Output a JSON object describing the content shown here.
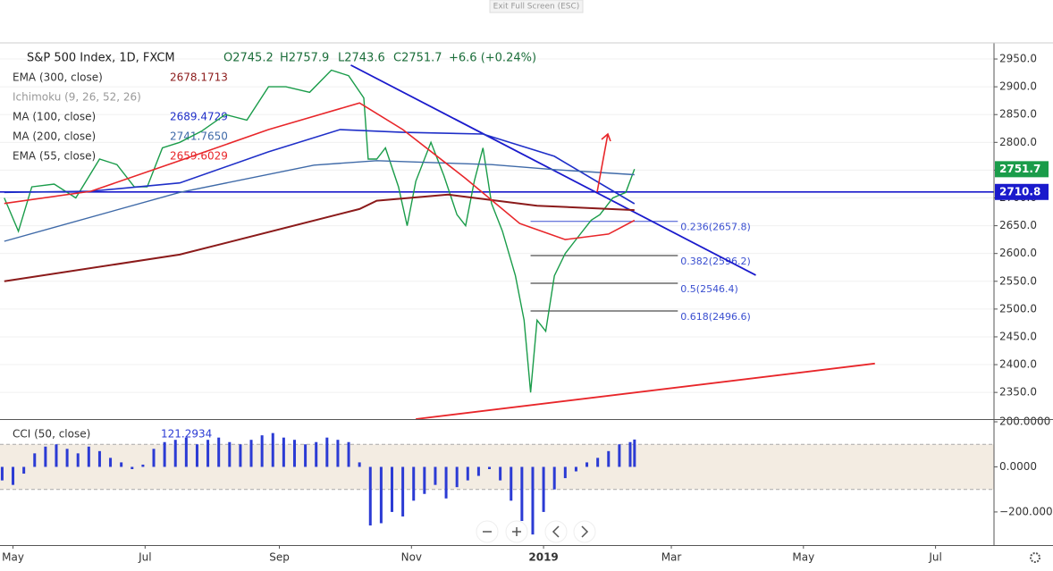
{
  "ui": {
    "exit_button": "Exit Full Screen (ESC)"
  },
  "chart_data": [
    {
      "type": "line",
      "title": "S&P 500 Index, 1D, FXCM",
      "ohlc": [
        "O2745.2",
        "H2757.9",
        "L2743.6",
        "C2751.7",
        "+6.6 (+0.24%)"
      ],
      "xlim": [
        -6,
        453
      ],
      "ylim": [
        2302,
        2979
      ],
      "yticks": [
        {
          "value": 2350,
          "label": "2350.0"
        },
        {
          "value": 2400,
          "label": "2400.0"
        },
        {
          "value": 2450,
          "label": "2450.0"
        },
        {
          "value": 2500,
          "label": "2500.0"
        },
        {
          "value": 2550,
          "label": "2550.0"
        },
        {
          "value": 2600,
          "label": "2600.0"
        },
        {
          "value": 2650,
          "label": "2650.0"
        },
        {
          "value": 2700,
          "label": "2700.0"
        },
        {
          "value": 2750,
          "label": "2750.0"
        },
        {
          "value": 2800,
          "label": "2800.0"
        },
        {
          "value": 2850,
          "label": "2850.0"
        },
        {
          "value": 2900,
          "label": "2900.0"
        },
        {
          "value": 2950,
          "label": "2950.0"
        }
      ],
      "grid": true,
      "series": [
        {
          "color": "#1a9c4a",
          "width": 1.4,
          "x": [
            -4,
            2.5,
            8.7,
            19,
            29,
            40,
            48,
            56,
            62,
            69,
            77,
            87,
            98,
            108,
            118,
            126,
            137,
            147,
            155,
            162,
            164,
            168,
            172,
            178,
            182,
            186,
            193,
            199,
            205,
            209,
            213,
            217,
            221,
            226,
            232,
            236,
            239,
            242,
            246,
            250,
            255,
            261,
            267,
            271,
            277,
            283,
            287
          ],
          "values": [
            2700,
            2640,
            2720,
            2725,
            2700,
            2770,
            2760,
            2720,
            2720,
            2790,
            2800,
            2820,
            2850,
            2840,
            2900,
            2900,
            2890,
            2930,
            2920,
            2880,
            2770,
            2770,
            2790,
            2720,
            2650,
            2730,
            2800,
            2740,
            2670,
            2650,
            2730,
            2790,
            2690,
            2640,
            2560,
            2480,
            2350,
            2480,
            2460,
            2560,
            2600,
            2630,
            2660,
            2670,
            2700,
            2710,
            2751.7
          ]
        },
        {
          "name": "EMA (300, close)",
          "last_label": "2678.1713",
          "color": "#8b1a1a",
          "width": 2,
          "x": [
            -4,
            77,
            160,
            168,
            201,
            242,
            287
          ],
          "values": [
            2550,
            2598,
            2680,
            2695,
            2706,
            2686,
            2678.17
          ]
        },
        {
          "name": "Ichimoku (9, 26, 52, 26)",
          "color": "#8a8a8a",
          "width": 1,
          "x": [],
          "values": []
        },
        {
          "name": "MA (100, close)",
          "last_label": "2689.4729",
          "color": "#1f2fc8",
          "width": 1.6,
          "x": [
            -4,
            36,
            77,
            118,
            151,
            180,
            217,
            250,
            287
          ],
          "values": [
            2710,
            2712,
            2727,
            2783,
            2823,
            2818,
            2815,
            2775,
            2689.47
          ]
        },
        {
          "name": "MA (200, close)",
          "last_label": "2741.7650",
          "color": "#3f6aa8",
          "width": 1.4,
          "x": [
            -4,
            77,
            139,
            168,
            221,
            250,
            287
          ],
          "values": [
            2622,
            2710,
            2759,
            2767,
            2760,
            2751,
            2741.77
          ]
        },
        {
          "name": "EMA (55, close)",
          "last_label": "2659.6029",
          "color": "#e8262a",
          "width": 1.6,
          "x": [
            -4,
            36,
            77,
            118,
            160,
            180,
            209,
            234,
            255,
            275,
            287
          ],
          "values": [
            2690,
            2712,
            2767,
            2823,
            2871,
            2823,
            2735,
            2654,
            2625,
            2635,
            2659.6
          ]
        }
      ],
      "hline": {
        "value": 2710.8,
        "color": "#1a1acc"
      },
      "trendlines": [
        {
          "x": [
            156,
            343
          ],
          "y": [
            2939,
            2561
          ],
          "color": "#1a1acc"
        },
        {
          "x": [
            186,
            398
          ],
          "y": [
            2302,
            2402
          ],
          "color": "#e8262a"
        }
      ],
      "fib": {
        "x": [
          239,
          307
        ],
        "color": "#3a4fd0",
        "levels": [
          {
            "value": 2657.8,
            "label": "0.236(2657.8)"
          },
          {
            "value": 2596.2,
            "label": "0.382(2596.2)"
          },
          {
            "value": 2546.4,
            "label": "0.5(2546.4)"
          },
          {
            "value": 2496.6,
            "label": "0.618(2496.6)"
          }
        ]
      }
    },
    {
      "type": "bar",
      "title": "CCI (50, close)",
      "color": "#2b3bd4",
      "xlim": [
        -6,
        453
      ],
      "ylim": [
        -347,
        212
      ],
      "yticks": [
        {
          "value": -200,
          "label": "−200.0000"
        },
        {
          "value": 0,
          "label": "0.0000"
        },
        {
          "value": 200,
          "label": "200.0000"
        }
      ],
      "band": [
        -100,
        100
      ],
      "xticks": [
        {
          "value": 0,
          "label": "May"
        },
        {
          "value": 61,
          "label": "Jul"
        },
        {
          "value": 123,
          "label": "Sep"
        },
        {
          "value": 184,
          "label": "Nov"
        },
        {
          "value": 245,
          "label": "2019"
        },
        {
          "value": 304,
          "label": "Mar"
        },
        {
          "value": 365,
          "label": "May"
        },
        {
          "value": 426,
          "label": "Jul"
        }
      ],
      "x": [
        -5,
        0,
        5,
        10,
        15,
        20,
        25,
        30,
        35,
        40,
        45,
        50,
        55,
        60,
        65,
        70,
        75,
        80,
        85,
        90,
        95,
        100,
        105,
        110,
        115,
        120,
        125,
        130,
        135,
        140,
        145,
        150,
        155,
        160,
        165,
        170,
        175,
        180,
        185,
        190,
        195,
        200,
        205,
        210,
        215,
        220,
        225,
        230,
        235,
        240,
        245,
        250,
        255,
        260,
        265,
        270,
        275,
        280,
        285,
        287
      ],
      "values": [
        -60,
        -80,
        -30,
        60,
        90,
        100,
        80,
        60,
        90,
        70,
        40,
        20,
        -10,
        10,
        80,
        110,
        120,
        130,
        100,
        120,
        130,
        110,
        100,
        120,
        140,
        150,
        130,
        120,
        100,
        110,
        130,
        120,
        110,
        20,
        -260,
        -250,
        -200,
        -220,
        -150,
        -120,
        -80,
        -140,
        -90,
        -60,
        -40,
        -10,
        -60,
        -150,
        -240,
        -300,
        -200,
        -100,
        -50,
        -20,
        20,
        40,
        70,
        100,
        110,
        121.2934
      ]
    }
  ]
}
